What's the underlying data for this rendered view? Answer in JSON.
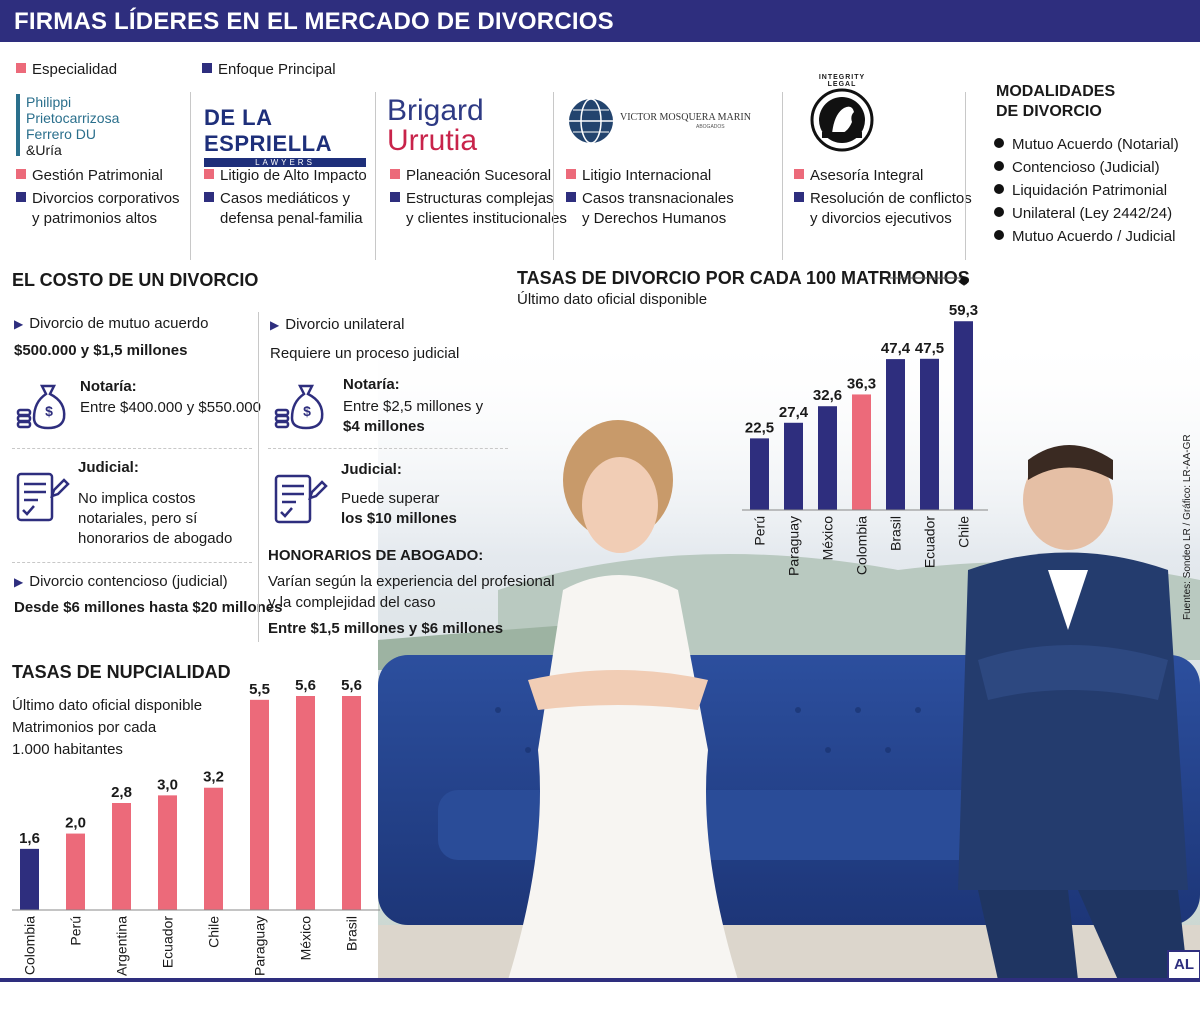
{
  "title": "FIRMAS LÍDERES EN EL MERCADO DE DIVORCIOS",
  "legend": {
    "especialidad": "Especialidad",
    "enfoque": "Enfoque Principal"
  },
  "colors": {
    "navy": "#2e2e7e",
    "pink": "#ec6a7a"
  },
  "firms": [
    {
      "logo_lines": [
        "Philippi",
        "Prietocarrizosa",
        "Ferrero DU",
        "&Uría"
      ],
      "especialidad": "Gestión Patrimonial",
      "enfoque": [
        "Divorcios corporativos",
        "y patrimonios altos"
      ]
    },
    {
      "logo_lines": [
        "DE LA ESPRIELLA",
        "LAWYERS"
      ],
      "especialidad": "Litigio de Alto Impacto",
      "enfoque": [
        "Casos mediáticos y",
        "defensa penal-familia"
      ]
    },
    {
      "logo_lines": [
        "Brigard",
        "Urrutia"
      ],
      "especialidad": "Planeación Sucesoral",
      "enfoque": [
        "Estructuras complejas",
        "y clientes institucionales"
      ]
    },
    {
      "logo_lines": [
        "VICTOR MOSQUERA MARIN",
        "ABOGADOS"
      ],
      "especialidad": "Litigio Internacional",
      "enfoque": [
        "Casos transnacionales",
        "y Derechos Humanos"
      ]
    },
    {
      "logo_lines": [
        "INTEGRITY LEGAL"
      ],
      "especialidad": "Asesoría Integral",
      "enfoque": [
        "Resolución de conflictos",
        "y divorcios ejecutivos"
      ]
    }
  ],
  "modalidades": {
    "title": [
      "MODALIDADES",
      "DE DIVORCIO"
    ],
    "items": [
      "Mutuo Acuerdo (Notarial)",
      "Contencioso (Judicial)",
      "Liquidación Patrimonial",
      "Unilateral (Ley 2442/24)",
      "Mutuo Acuerdo / Judicial"
    ]
  },
  "costo": {
    "title": "EL COSTO DE UN DIVORCIO",
    "mutuo": {
      "label": "Divorcio de mutuo acuerdo",
      "range": "$500.000 y $1,5 millones",
      "notaria_title": "Notaría:",
      "notaria_text": "Entre $400.000 y $550.000",
      "judicial_title": "Judicial:",
      "judicial_text": [
        "No implica costos",
        "notariales, pero sí",
        "honorarios de abogado"
      ]
    },
    "contencioso": {
      "label": "Divorcio contencioso (judicial)",
      "range": "Desde $6 millones hasta $20 millones"
    },
    "unilateral": {
      "label": "Divorcio unilateral",
      "req": "Requiere un proceso judicial",
      "notaria_title": "Notaría:",
      "notaria_text": [
        "Entre $2,5 millones y",
        "$4 millones"
      ],
      "judicial_title": "Judicial:",
      "judicial_text": [
        "Puede superar",
        "los $10 millones"
      ]
    },
    "honorarios": {
      "title": "HONORARIOS DE ABOGADO:",
      "text": [
        "Varían según la experiencia del profesional",
        "y la complejidad del caso"
      ],
      "range": "Entre $1,5 millones y $6 millones"
    }
  },
  "source": "Fuentes: Sondeo LR / Gráfico: LR-AA-GR",
  "badge": "AL",
  "chart_data": [
    {
      "type": "bar",
      "title": "TASAS DE DIVORCIO POR CADA 100 MATRIMONIOS",
      "subtitle": "Último dato oficial disponible",
      "categories": [
        "Perú",
        "Paraguay",
        "México",
        "Colombia",
        "Brasil",
        "Ecuador",
        "Chile"
      ],
      "values": [
        22.5,
        27.4,
        32.6,
        36.3,
        47.4,
        47.5,
        59.3
      ],
      "labels": [
        "22,5",
        "27,4",
        "32,6",
        "36,3",
        "47,4",
        "47,5",
        "59,3"
      ],
      "highlight": "Colombia",
      "bar_color": "#2e2e7e",
      "highlight_color": "#ec6a7a",
      "ylim": [
        0,
        60
      ]
    },
    {
      "type": "bar",
      "title": "TASAS DE NUPCIALIDAD",
      "subtitle": [
        "Último dato oficial disponible",
        "Matrimonios por cada",
        "1.000 habitantes"
      ],
      "categories": [
        "Colombia",
        "Perú",
        "Argentina",
        "Ecuador",
        "Chile",
        "Paraguay",
        "México",
        "Brasil"
      ],
      "values": [
        1.6,
        2.0,
        2.8,
        3.0,
        3.2,
        5.5,
        5.6,
        5.6
      ],
      "labels": [
        "1,6",
        "2,0",
        "2,8",
        "3,0",
        "3,2",
        "5,5",
        "5,6",
        "5,6"
      ],
      "highlight": "Colombia",
      "bar_color": "#ec6a7a",
      "highlight_color": "#2e2e7e",
      "ylim": [
        0,
        5.6
      ]
    }
  ]
}
